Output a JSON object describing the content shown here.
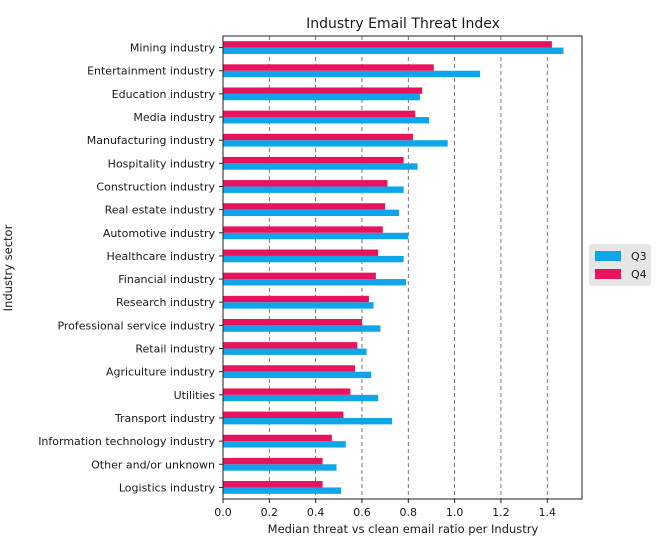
{
  "chart_data": {
    "type": "bar",
    "orientation": "horizontal",
    "title": "Industry Email Threat Index",
    "xlabel": "Median threat vs clean email ratio per Industry",
    "ylabel": "Industry sector",
    "xlim": [
      0,
      1.55
    ],
    "xticks": [
      "0.0",
      "0.2",
      "0.4",
      "0.6",
      "0.8",
      "1.0",
      "1.2",
      "1.4"
    ],
    "grid": "vertical dashed",
    "legend_position": "right",
    "categories": [
      "Mining industry",
      "Entertainment industry",
      "Education industry",
      "Media industry",
      "Manufacturing industry",
      "Hospitality industry",
      "Construction industry",
      "Real estate industry",
      "Automotive industry",
      "Healthcare industry",
      "Financial industry",
      "Research industry",
      "Professional service industry",
      "Retail industry",
      "Agriculture industry",
      "Utilities",
      "Transport industry",
      "Information technology industry",
      "Other and/or unknown",
      "Logistics industry"
    ],
    "series": [
      {
        "name": "Q3",
        "color": "#0ea5e9",
        "values": [
          1.47,
          1.11,
          0.85,
          0.89,
          0.97,
          0.84,
          0.78,
          0.76,
          0.8,
          0.78,
          0.79,
          0.65,
          0.68,
          0.62,
          0.64,
          0.67,
          0.73,
          0.53,
          0.49,
          0.51
        ]
      },
      {
        "name": "Q4",
        "color": "#e8135f",
        "values": [
          1.42,
          0.91,
          0.86,
          0.83,
          0.82,
          0.78,
          0.71,
          0.7,
          0.69,
          0.67,
          0.66,
          0.63,
          0.6,
          0.58,
          0.57,
          0.55,
          0.52,
          0.47,
          0.43,
          0.43
        ]
      }
    ]
  }
}
